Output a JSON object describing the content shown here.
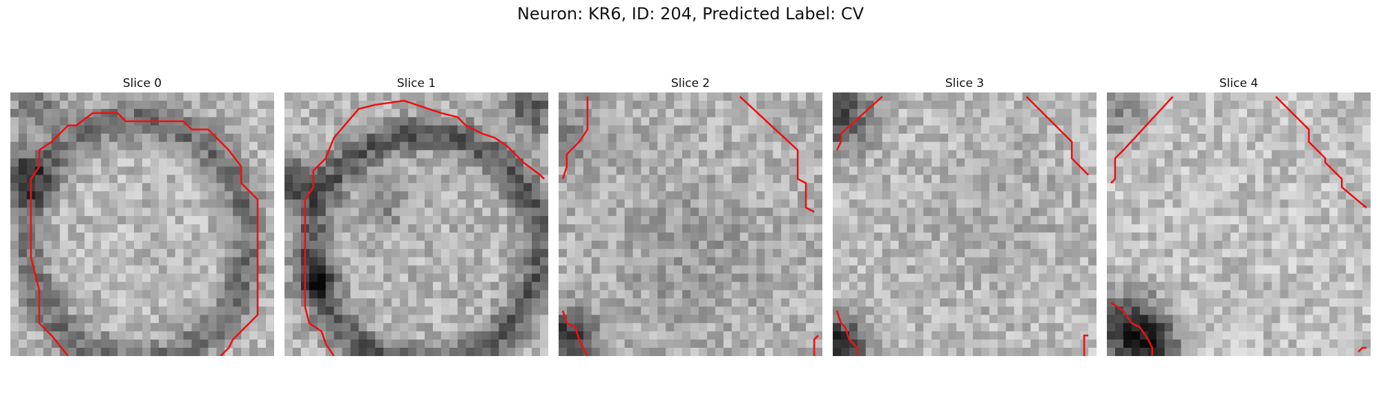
{
  "figure": {
    "title": "Neuron: KR6, ID: 204, Predicted Label: CV"
  },
  "slices": [
    {
      "title": "Slice 0"
    },
    {
      "title": "Slice 1"
    },
    {
      "title": "Slice 2"
    },
    {
      "title": "Slice 3"
    },
    {
      "title": "Slice 4"
    }
  ],
  "colors": {
    "contour": "#ee1111",
    "background": "#ffffff"
  }
}
